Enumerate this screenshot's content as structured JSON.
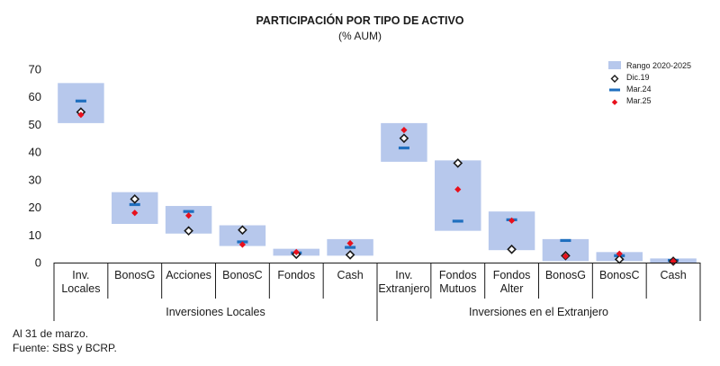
{
  "chart_data": {
    "type": "range-marker",
    "title": "PARTICIPACIÓN POR TIPO DE ACTIVO",
    "subtitle": "(% AUM)",
    "ylim": [
      0,
      70
    ],
    "yticks": [
      "0",
      "10",
      "20",
      "30",
      "40",
      "50",
      "60",
      "70"
    ],
    "grid": false,
    "legend_position": "top-right",
    "legend": {
      "range": "Rango 2020-2025",
      "dic19": "Dic.19",
      "mar24": "Mar.24",
      "mar25": "Mar.25"
    },
    "colors": {
      "range": "#b7c8ec",
      "dic19": "#1a1a1a",
      "mar24": "#1f6fbf",
      "mar25": "#e8101c",
      "axis": "#1a1a1a"
    },
    "categories": [
      {
        "lines": [
          "Inv.",
          "Locales"
        ],
        "range": [
          50.5,
          65
        ],
        "dic19": 54.5,
        "mar24": 58.5,
        "mar25": 53.5
      },
      {
        "lines": [
          "BonosG"
        ],
        "range": [
          14,
          25.5
        ],
        "dic19": 23,
        "mar24": 21,
        "mar25": 18
      },
      {
        "lines": [
          "Acciones"
        ],
        "range": [
          10.5,
          20.5
        ],
        "dic19": 11.5,
        "mar24": 18.5,
        "mar25": 17
      },
      {
        "lines": [
          "BonosC"
        ],
        "range": [
          6,
          13.5
        ],
        "dic19": 11.8,
        "mar24": 7.5,
        "mar25": 6.5
      },
      {
        "lines": [
          "Fondos"
        ],
        "range": [
          2.5,
          5
        ],
        "dic19": 3,
        "mar24": 3.5,
        "mar25": 3.8
      },
      {
        "lines": [
          "Cash"
        ],
        "range": [
          2.5,
          8.5
        ],
        "dic19": 2.8,
        "mar24": 5.5,
        "mar25": 7
      },
      {
        "lines": [
          "Inv.",
          "Extranjero"
        ],
        "range": [
          36.5,
          50.5
        ],
        "dic19": 45,
        "mar24": 41.5,
        "mar25": 48
      },
      {
        "lines": [
          "Fondos",
          "Mutuos"
        ],
        "range": [
          11.5,
          37
        ],
        "dic19": 36,
        "mar24": 15,
        "mar25": 26.5
      },
      {
        "lines": [
          "Fondos",
          "Alter"
        ],
        "range": [
          4.5,
          18.5
        ],
        "dic19": 4.8,
        "mar24": 15.5,
        "mar25": 15.2
      },
      {
        "lines": [
          "BonosG"
        ],
        "range": [
          0.5,
          8.5
        ],
        "dic19": 2.5,
        "mar24": 8,
        "mar25": 2.3
      },
      {
        "lines": [
          "BonosC"
        ],
        "range": [
          0.5,
          3.8
        ],
        "dic19": 1.2,
        "mar24": 2.5,
        "mar25": 3.2
      },
      {
        "lines": [
          "Cash"
        ],
        "range": [
          0,
          1.5
        ],
        "dic19": 0.5,
        "mar24": 0.8,
        "mar25": 0.5
      }
    ],
    "groups": [
      {
        "label": "Inversiones Locales",
        "span": [
          0,
          5
        ]
      },
      {
        "label": "Inversiones en el Extranjero",
        "span": [
          6,
          11
        ]
      }
    ]
  },
  "notes": {
    "line1": "Al 31 de marzo.",
    "line2": "Fuente: SBS y BCRP."
  }
}
